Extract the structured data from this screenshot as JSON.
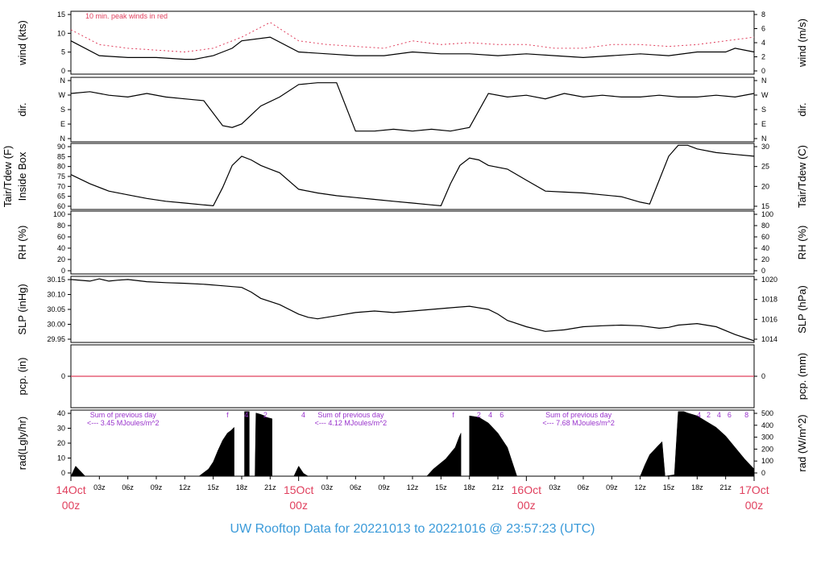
{
  "chart_data": {
    "type": "line",
    "title": "UW Rooftop Data for 20221013  to  20221016 @ 23:57:23  (UTC)",
    "x_axis": {
      "range_hours": [
        0,
        72
      ],
      "hour_ticks": [
        "03z",
        "06z",
        "09z",
        "12z",
        "15z",
        "18z",
        "21z",
        "03z",
        "06z",
        "09z",
        "12z",
        "15z",
        "18z",
        "21z",
        "03z",
        "06z",
        "09z",
        "12z",
        "15z",
        "18z",
        "21z"
      ],
      "day_labels": [
        {
          "date": "14Oct",
          "time": "00z"
        },
        {
          "date": "15Oct",
          "time": "00z"
        },
        {
          "date": "16Oct",
          "time": "00z"
        },
        {
          "date": "17Oct",
          "time": "00z"
        }
      ],
      "day_label_color": "#e0405e"
    },
    "panels": [
      {
        "id": "wind",
        "left_label": "wind (kts)",
        "right_label": "wind (m/s)",
        "left_ticks": [
          "0",
          "5",
          "10",
          "15"
        ],
        "right_ticks": [
          "0",
          "2",
          "4",
          "6",
          "8"
        ],
        "ylim": [
          0,
          17
        ],
        "annotation": "10 min. peak winds in red",
        "annotation_color": "#e0405e",
        "series": [
          {
            "x": [
              0,
              3,
              6,
              9,
              12,
              13,
              15,
              16,
              17,
              18,
              21,
              24,
              27,
              30,
              33,
              36,
              39,
              42,
              45,
              48,
              51,
              54,
              57,
              60,
              63,
              66,
              69,
              70,
              72
            ],
            "values": [
              9,
              5,
              4.5,
              4.5,
              4,
              4,
              5,
              6,
              7,
              9,
              10,
              6,
              5.5,
              5,
              5,
              6,
              5.5,
              5.5,
              5,
              5.5,
              5,
              4.5,
              5,
              5.5,
              5,
              6,
              6,
              7,
              6
            ]
          },
          {
            "x": [
              0,
              3,
              6,
              9,
              12,
              15,
              18,
              21,
              24,
              27,
              30,
              33,
              36,
              39,
              42,
              45,
              48,
              51,
              54,
              57,
              60,
              63,
              66,
              69,
              72
            ],
            "values": [
              12,
              8,
              7,
              6.5,
              6,
              7,
              10,
              14,
              9,
              8,
              7.5,
              7,
              9,
              8,
              8.5,
              8,
              8,
              7,
              7,
              8,
              8,
              7.5,
              8,
              9,
              10
            ]
          }
        ]
      },
      {
        "id": "dir",
        "left_label": "dir.",
        "right_label": "dir.",
        "left_ticks": [
          "N",
          "E",
          "S",
          "W",
          "N"
        ],
        "right_ticks": [
          "N",
          "E",
          "S",
          "W",
          "N"
        ],
        "ylim": [
          0,
          360
        ],
        "series": [
          {
            "x": [
              0,
              2,
              4,
              6,
              8,
              10,
              12,
              14,
              16,
              17,
              18,
              19,
              20,
              22,
              24,
              26,
              28,
              30,
              32,
              34,
              36,
              38,
              40,
              42,
              44,
              46,
              48,
              50,
              52,
              54,
              56,
              58,
              60,
              62,
              64,
              66,
              68,
              70,
              72
            ],
            "values": [
              270,
              280,
              260,
              250,
              270,
              250,
              240,
              230,
              90,
              80,
              100,
              150,
              200,
              250,
              320,
              330,
              330,
              60,
              60,
              70,
              60,
              70,
              60,
              80,
              270,
              250,
              260,
              240,
              270,
              250,
              260,
              250,
              250,
              260,
              250,
              250,
              260,
              250,
              270
            ]
          }
        ]
      },
      {
        "id": "temp",
        "left_label": "Tair/Tdew (F)",
        "left_label2": "Inside Box",
        "right_label": "Tair/Tdew (C)",
        "left_ticks": [
          "60",
          "65",
          "70",
          "75",
          "80",
          "85",
          "90"
        ],
        "right_ticks": [
          "15",
          "20",
          "25",
          "30"
        ],
        "ylim": [
          56,
          92
        ],
        "series": [
          {
            "x": [
              0,
              2,
              4,
              6,
              8,
              10,
              12,
              14,
              15,
              16,
              17,
              18,
              19,
              20,
              21,
              22,
              24,
              26,
              28,
              30,
              32,
              34,
              36,
              38,
              39,
              40,
              41,
              42,
              43,
              44,
              46,
              48,
              50,
              52,
              54,
              56,
              58,
              60,
              61,
              62,
              63,
              64,
              65,
              66,
              68,
              70,
              72
            ],
            "values": [
              75,
              70,
              66,
              64,
              62,
              60.5,
              59.5,
              58.5,
              58,
              68,
              80,
              85,
              83,
              80,
              78,
              76,
              67,
              65,
              63.5,
              62.5,
              61.5,
              60.5,
              59.5,
              58.5,
              58,
              70,
              80,
              84,
              83,
              80,
              78,
              72,
              66,
              65.5,
              65,
              64,
              63,
              60,
              59,
              72,
              85,
              91,
              91,
              89,
              87,
              86,
              85
            ]
          }
        ]
      },
      {
        "id": "rh",
        "left_label": "RH (%)",
        "right_label": "RH (%)",
        "left_ticks": [
          "0",
          "20",
          "40",
          "60",
          "80",
          "100"
        ],
        "right_ticks": [
          "0",
          "20",
          "40",
          "60",
          "80",
          "100"
        ],
        "ylim": [
          0,
          100
        ],
        "series": []
      },
      {
        "id": "slp",
        "left_label": "SLP (inHg)",
        "right_label": "SLP (hPa)",
        "left_ticks": [
          "29.95",
          "30.00",
          "30.05",
          "30.10",
          "30.15"
        ],
        "right_ticks": [
          "1014",
          "1016",
          "1018",
          "1020"
        ],
        "ylim": [
          29.95,
          30.16
        ],
        "series": [
          {
            "x": [
              0,
              2,
              3,
              4,
              5,
              6,
              8,
              10,
              12,
              14,
              16,
              18,
              19,
              20,
              22,
              24,
              25,
              26,
              28,
              30,
              32,
              34,
              36,
              38,
              40,
              42,
              44,
              45,
              46,
              48,
              50,
              52,
              54,
              56,
              58,
              60,
              62,
              63,
              64,
              66,
              68,
              70,
              72
            ],
            "values": [
              30.15,
              30.145,
              30.152,
              30.145,
              30.148,
              30.15,
              30.143,
              30.14,
              30.138,
              30.135,
              30.13,
              30.125,
              30.11,
              30.09,
              30.07,
              30.04,
              30.03,
              30.025,
              30.035,
              30.045,
              30.05,
              30.045,
              30.05,
              30.055,
              30.06,
              30.065,
              30.055,
              30.04,
              30.02,
              30.0,
              29.985,
              29.99,
              30.0,
              30.003,
              30.005,
              30.003,
              29.995,
              29.998,
              30.005,
              30.01,
              30.0,
              29.975,
              29.955
            ]
          }
        ]
      },
      {
        "id": "pcp",
        "left_label": "pcp. (in)",
        "right_label": "pcp. (mm)",
        "left_ticks": [
          "0"
        ],
        "right_ticks": [
          "0"
        ],
        "ylim": [
          -1,
          1
        ],
        "series": [
          {
            "x": [
              0,
              72
            ],
            "values": [
              0,
              0
            ]
          }
        ],
        "line_color": "#e0405e"
      },
      {
        "id": "rad",
        "type": "area",
        "left_label": "rad(Lgly/hr)",
        "right_label": "rad (W/m^2)",
        "left_ticks": [
          "0",
          "10",
          "20",
          "30",
          "40"
        ],
        "right_ticks": [
          "0",
          "100",
          "200",
          "300",
          "400",
          "500"
        ],
        "ylim": [
          0,
          46
        ],
        "series": [
          {
            "x": [
              0,
              0.5,
              1.5,
              13.5,
              14.5,
              15,
              15.5,
              16,
              16.5,
              16.9,
              17.2,
              17.2,
              18.3,
              18.3,
              18.8,
              18.8,
              19.4,
              19.5,
              20,
              20.4,
              20.6,
              21.2,
              21.2,
              23.5,
              24,
              24.5,
              25,
              37.5,
              38.2,
              39.5,
              40.5,
              40.9,
              41.1,
              41.1,
              42,
              42,
              43,
              44,
              45,
              46,
              46.5,
              47,
              60,
              60.5,
              61,
              62,
              62.3,
              62.6,
              62.6,
              63.6,
              63.6,
              64,
              64.6,
              65,
              66,
              67,
              68,
              69,
              70,
              71,
              72
            ],
            "values": [
              0,
              7,
              0,
              0,
              5,
              10,
              18,
              25,
              30,
              32,
              34,
              0,
              0,
              45,
              45,
              0,
              0,
              44,
              43,
              42,
              41,
              40,
              0,
              0,
              7,
              2,
              0,
              0,
              5,
              12,
              20,
              27,
              30,
              0,
              0,
              42,
              41,
              37,
              30,
              20,
              10,
              0,
              0,
              8,
              15,
              22,
              24,
              1,
              0,
              1,
              1,
              45,
              45,
              44,
              42,
              38,
              34,
              28,
              20,
              12,
              5
            ]
          }
        ],
        "labels": [
          {
            "text": "Sum of previous day",
            "x": 5.5
          },
          {
            "text": "<--- 3.45 MJoules/m^2",
            "x": 5.5
          },
          {
            "text": "Sum of previous day",
            "x": 29.5
          },
          {
            "text": "<--- 4.12 MJoules/m^2",
            "x": 29.5
          },
          {
            "text": "Sum of previous day",
            "x": 53.5
          },
          {
            "text": "<--- 7.68 MJoules/m^2",
            "x": 53.5
          }
        ],
        "markers": [
          {
            "text": "f",
            "x": 16.5
          },
          {
            "text": "4",
            "x": 18.5
          },
          {
            "text": "2",
            "x": 20.5
          },
          {
            "text": "4",
            "x": 24.5
          },
          {
            "text": "f",
            "x": 40.3
          },
          {
            "text": "2",
            "x": 43
          },
          {
            "text": "4",
            "x": 44.2
          },
          {
            "text": "6",
            "x": 45.4
          },
          {
            "text": "4",
            "x": 66.2
          },
          {
            "text": "2",
            "x": 67.2
          },
          {
            "text": "4",
            "x": 68.3
          },
          {
            "text": "6",
            "x": 69.4
          },
          {
            "text": "8",
            "x": 71.2
          }
        ],
        "label_color": "#9933cc"
      }
    ],
    "colors": {
      "line": "#000000",
      "peak": "#e0405e",
      "accent": "#9933cc",
      "title": "#3a9ad9"
    }
  }
}
